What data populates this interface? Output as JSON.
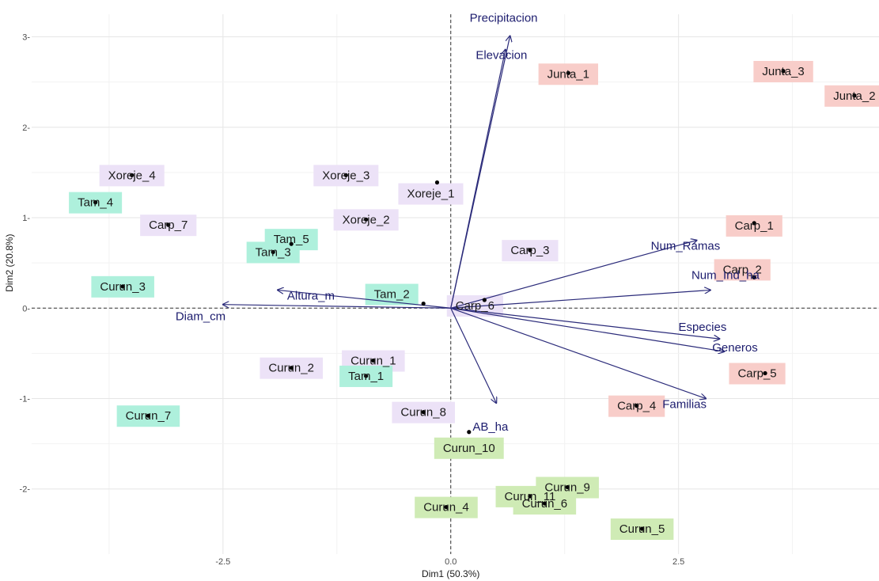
{
  "chart_data": {
    "type": "scatter",
    "subtype": "pca-biplot",
    "title": "",
    "xlabel": "Dim1 (50.3%)",
    "ylabel": "Dim2 (20.8%)",
    "xlim": [
      -4.6,
      4.7
    ],
    "ylim": [
      -2.72,
      3.25
    ],
    "x_ticks": [
      -2.5,
      0.0,
      2.5
    ],
    "x_tick_labels": [
      "-2.5",
      "0.0",
      "2.5"
    ],
    "y_ticks": [
      -2,
      -1,
      0,
      1,
      2,
      3
    ],
    "y_tick_labels": [
      "-2-",
      "-1-",
      "0-",
      "1-",
      "2-",
      "3-"
    ],
    "grid": true,
    "reference_lines": [
      {
        "axis": "x",
        "value": 0,
        "style": "dashed"
      },
      {
        "axis": "y",
        "value": 0,
        "style": "dashed"
      }
    ],
    "group_colors": {
      "teal": "#aef0dc",
      "purple": "#ece2f7",
      "red": "#f8cdc9",
      "green": "#cfebb5"
    },
    "arrow_color": "#2b2b7a",
    "points": [
      {
        "label": "Junta_1",
        "x": 1.29,
        "y": 2.6,
        "group": "red"
      },
      {
        "label": "Junta_3",
        "x": 3.65,
        "y": 2.62,
        "group": "red"
      },
      {
        "label": "Junta_2",
        "x": 4.43,
        "y": 2.35,
        "group": "red"
      },
      {
        "label": "Carp_1",
        "x": 3.33,
        "y": 0.94,
        "group": "red"
      },
      {
        "label": "Carp_2",
        "x": 3.33,
        "y": 0.34,
        "group": "red"
      },
      {
        "label": "Carp_5",
        "x": 3.45,
        "y": -0.72,
        "group": "red"
      },
      {
        "label": "Carp_4",
        "x": 2.04,
        "y": -1.08,
        "group": "red"
      },
      {
        "label": "Xoreje_4",
        "x": -3.5,
        "y": 1.47,
        "group": "purple"
      },
      {
        "label": "Xoreje_3",
        "x": -1.15,
        "y": 1.47,
        "group": "purple"
      },
      {
        "label": "Xoreje_1",
        "x": -0.15,
        "y": 1.39,
        "group": "purple"
      },
      {
        "label": "Xoreje_2",
        "x": -0.93,
        "y": 0.98,
        "group": "purple"
      },
      {
        "label": "Carp_7",
        "x": -3.1,
        "y": 0.92,
        "group": "purple"
      },
      {
        "label": "Carp_3",
        "x": 0.87,
        "y": 0.64,
        "group": "purple"
      },
      {
        "label": "Carp_6",
        "x": 0.37,
        "y": 0.09,
        "group": "purple"
      },
      {
        "label": "Curun_1",
        "x": -0.85,
        "y": -0.58,
        "group": "purple"
      },
      {
        "label": "Curun_2",
        "x": -1.75,
        "y": -0.66,
        "group": "purple"
      },
      {
        "label": "Curun_8",
        "x": -0.3,
        "y": -1.15,
        "group": "purple"
      },
      {
        "label": "Tam_4",
        "x": -3.9,
        "y": 1.17,
        "group": "teal"
      },
      {
        "label": "Tam_5",
        "x": -1.75,
        "y": 0.71,
        "group": "teal"
      },
      {
        "label": "Tam_3",
        "x": -1.95,
        "y": 0.62,
        "group": "teal"
      },
      {
        "label": "Curun_3",
        "x": -3.6,
        "y": 0.24,
        "group": "teal"
      },
      {
        "label": "Tam_2",
        "x": -0.3,
        "y": 0.05,
        "group": "teal"
      },
      {
        "label": "Tam_1",
        "x": -0.93,
        "y": -0.75,
        "group": "teal"
      },
      {
        "label": "Curun_7",
        "x": -3.32,
        "y": -1.19,
        "group": "teal"
      },
      {
        "label": "Curun_10",
        "x": 0.2,
        "y": -1.37,
        "group": "green"
      },
      {
        "label": "Curun_11",
        "x": 0.87,
        "y": -2.08,
        "group": "green"
      },
      {
        "label": "Curun_9",
        "x": 1.28,
        "y": -1.98,
        "group": "green"
      },
      {
        "label": "Curun_4",
        "x": -0.05,
        "y": -2.2,
        "group": "green"
      },
      {
        "label": "Curun_6",
        "x": 1.03,
        "y": -2.16,
        "group": "green"
      },
      {
        "label": "Curun_5",
        "x": 2.1,
        "y": -2.44,
        "group": "green"
      }
    ],
    "variables": [
      {
        "label": "Precipitacion",
        "x": 0.65,
        "y": 3.01
      },
      {
        "label": "Elevacion",
        "x": 0.6,
        "y": 2.86
      },
      {
        "label": "Num_Ramas",
        "x": 2.7,
        "y": 0.75
      },
      {
        "label": "Num_Ind_ha",
        "x": 2.85,
        "y": 0.2
      },
      {
        "label": "Especies",
        "x": 2.95,
        "y": -0.34
      },
      {
        "label": "Generos",
        "x": 3.0,
        "y": -0.48
      },
      {
        "label": "Familias",
        "x": 2.8,
        "y": -1.0
      },
      {
        "label": "AB_ha",
        "x": 0.5,
        "y": -1.05
      },
      {
        "label": "Altura_m",
        "x": -1.9,
        "y": 0.2
      },
      {
        "label": "Diam_cm",
        "x": -2.5,
        "y": 0.04
      }
    ]
  }
}
